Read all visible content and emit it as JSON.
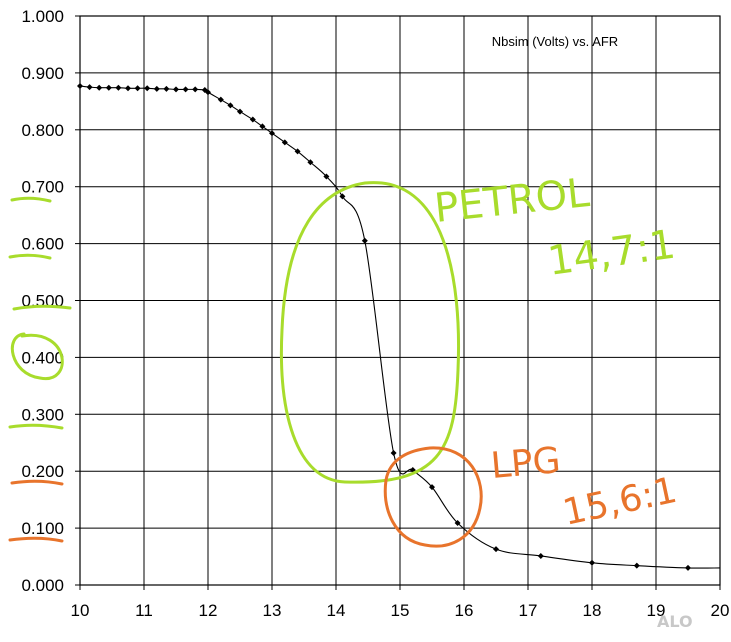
{
  "chart_data": {
    "type": "line",
    "title": "Nbsim (Volts)  vs. AFR",
    "xlabel": "",
    "ylabel": "",
    "xlim": [
      10,
      20
    ],
    "ylim": [
      0,
      1
    ],
    "grid": true,
    "x_ticks": [
      "10",
      "11",
      "12",
      "13",
      "14",
      "15",
      "16",
      "17",
      "18",
      "19",
      "20"
    ],
    "y_ticks": [
      "0.000",
      "0.100",
      "0.200",
      "0.300",
      "0.400",
      "0.500",
      "0.600",
      "0.700",
      "0.800",
      "0.900",
      "1.000"
    ],
    "series": [
      {
        "x": [
          10.0,
          10.15,
          10.3,
          10.45,
          10.6,
          10.75,
          10.9,
          11.05,
          11.2,
          11.35,
          11.5,
          11.65,
          11.8,
          11.95,
          12.0,
          12.2,
          12.35,
          12.5,
          12.7,
          12.85,
          13.0,
          13.2,
          13.4,
          13.6,
          13.85,
          14.1,
          14.45,
          14.9,
          15.2,
          15.5,
          15.9,
          16.5,
          17.2,
          18.0,
          18.7,
          19.5,
          20.0
        ],
        "y": [
          0.877,
          0.875,
          0.874,
          0.874,
          0.874,
          0.873,
          0.873,
          0.873,
          0.872,
          0.872,
          0.871,
          0.871,
          0.871,
          0.87,
          0.866,
          0.853,
          0.843,
          0.832,
          0.818,
          0.806,
          0.794,
          0.778,
          0.762,
          0.743,
          0.718,
          0.683,
          0.605,
          0.232,
          0.202,
          0.172,
          0.109,
          0.063,
          0.051,
          0.039,
          0.034,
          0.03,
          0.03
        ],
        "marker": "diamond",
        "color": "#000000"
      }
    ]
  },
  "annotations": {
    "petrol_label": "PETROL",
    "petrol_ratio": "14,7:1",
    "lpg_label": "LPG",
    "lpg_ratio": "15,6:1",
    "green": "#a8dc2c",
    "orange": "#e8742c"
  },
  "watermark": "ALO"
}
